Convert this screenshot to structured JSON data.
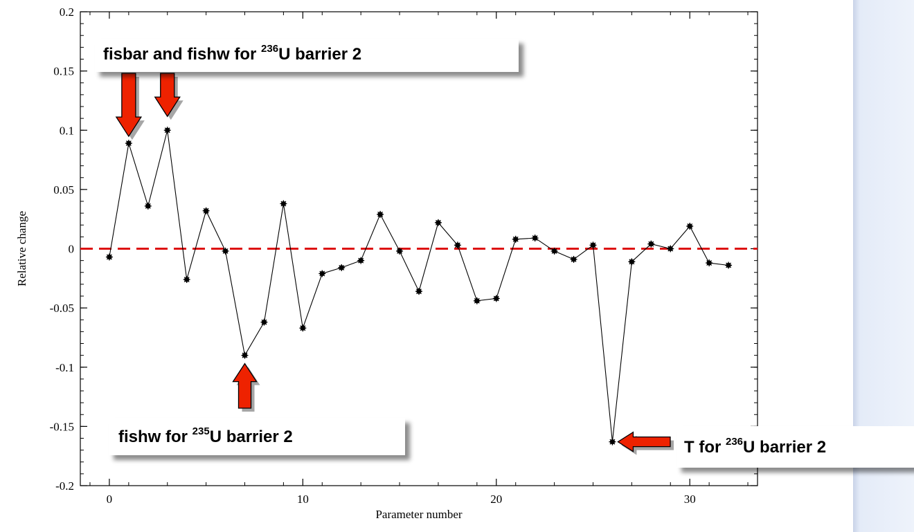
{
  "chart_data": {
    "type": "line",
    "xlabel": "Parameter number",
    "ylabel": "Relative change",
    "xlim": [
      -1.5,
      33.5
    ],
    "ylim": [
      -0.2,
      0.2
    ],
    "x_ticks": [
      0,
      10,
      20,
      30
    ],
    "x_tick_labels": [
      "0",
      "10",
      "20",
      "30"
    ],
    "y_ticks": [
      0.2,
      0.15,
      0.1,
      0.05,
      0,
      -0.05,
      -0.1,
      -0.15,
      -0.2
    ],
    "y_tick_labels": [
      "0.2",
      "0.15",
      "0.1",
      "0.05",
      "0",
      "-0.05",
      "-0.1",
      "-0.15",
      "-0.2"
    ],
    "grid": false,
    "legend": false,
    "series": [
      {
        "color": "#000000",
        "marker": "star",
        "x": [
          0,
          1,
          2,
          3,
          4,
          5,
          6,
          7,
          8,
          9,
          10,
          11,
          12,
          13,
          14,
          15,
          16,
          17,
          18,
          19,
          20,
          21,
          22,
          23,
          24,
          25,
          26,
          27,
          28,
          29,
          30,
          31,
          32
        ],
        "y": [
          -0.007,
          0.089,
          0.036,
          0.1,
          -0.026,
          0.032,
          -0.002,
          -0.09,
          -0.062,
          0.038,
          -0.067,
          -0.021,
          -0.016,
          -0.01,
          0.029,
          -0.002,
          -0.036,
          0.022,
          0.003,
          -0.044,
          -0.042,
          0.008,
          0.009,
          -0.002,
          -0.009,
          0.003,
          -0.163,
          -0.011,
          0.004,
          0.0,
          0.019,
          -0.012,
          -0.014
        ]
      }
    ],
    "reference_line": {
      "y": 0,
      "color": "#dd1111",
      "style": "dashed"
    },
    "annotations": [
      {
        "text_main": "fisbar and fishw for ",
        "superscript": "236",
        "text_rest": "U barrier 2",
        "points_to_x": [
          1,
          3
        ],
        "arrow": "down"
      },
      {
        "text_main": "fishw for ",
        "superscript": "235",
        "text_rest": "U barrier 2",
        "points_to_x": [
          7
        ],
        "arrow": "up"
      },
      {
        "text_main": "T for ",
        "superscript": "236",
        "text_rest": "U barrier 2",
        "points_to_x": [
          26
        ],
        "arrow": "left"
      }
    ],
    "arrow_color": "#ee2200"
  }
}
